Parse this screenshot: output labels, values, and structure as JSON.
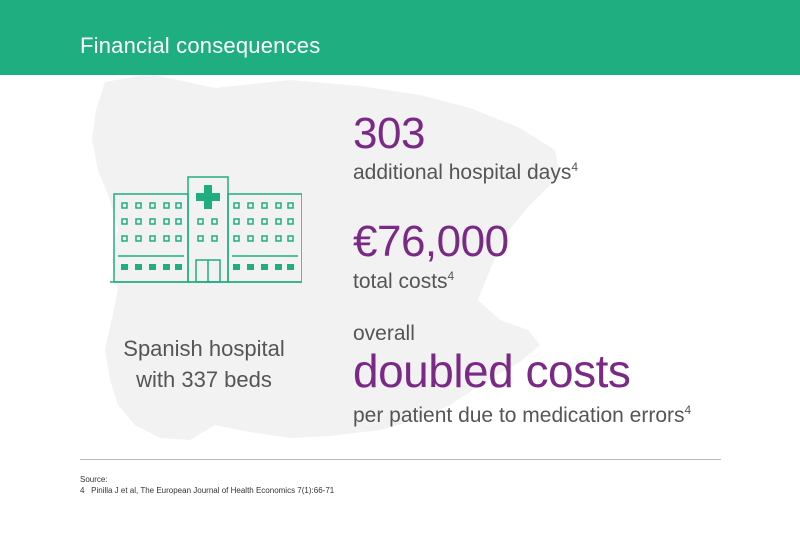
{
  "header": {
    "title": "Financial consequences"
  },
  "hospital": {
    "icon": "hospital-icon",
    "caption_line1": "Spanish hospital",
    "caption_line2": "with 337 beds"
  },
  "stats": [
    {
      "value": "303",
      "label": "additional hospital days",
      "ref": "4"
    },
    {
      "value": "€76,000",
      "label": "total costs",
      "ref": "4"
    },
    {
      "prefix": "overall",
      "value": "doubled costs",
      "label": "per patient due to medication errors",
      "ref": "4"
    }
  ],
  "source": {
    "heading": "Source:",
    "reference": "4   Pinilla J et al, The European Journal of Health Economics 7(1):66-71"
  },
  "colors": {
    "header_bg": "#1fae80",
    "accent_purple": "#7a2a86",
    "icon_green": "#1fae80",
    "map_gray": "#f1f1f1"
  }
}
